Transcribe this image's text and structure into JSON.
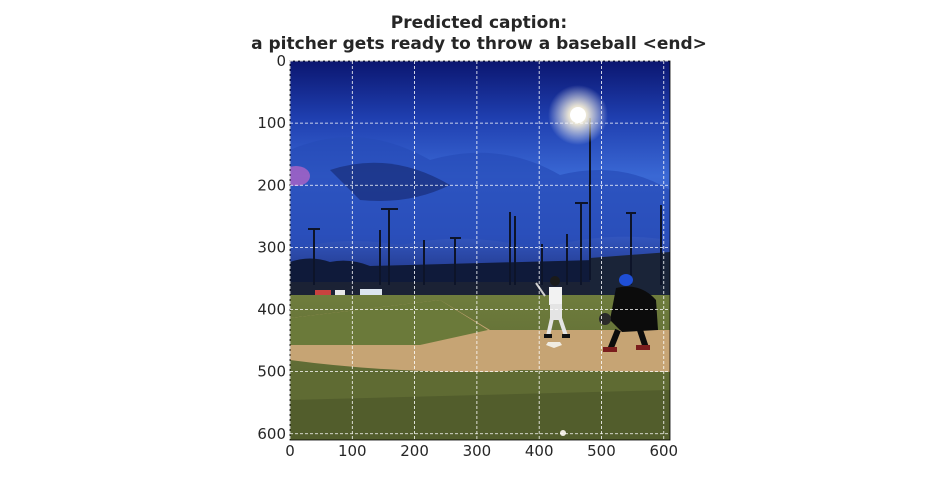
{
  "title_line1": "Predicted caption:",
  "title_line2": "a pitcher gets ready to throw a baseball <end>",
  "chart_data": {
    "type": "image",
    "title": "Predicted caption:\na pitcher gets ready to throw a baseball <end>",
    "xlabel": "",
    "ylabel": "",
    "xlim": [
      0,
      610
    ],
    "ylim": [
      610,
      0
    ],
    "x_ticks": [
      0,
      100,
      200,
      300,
      400,
      500,
      600
    ],
    "y_ticks": [
      0,
      100,
      200,
      300,
      400,
      500,
      600
    ],
    "grid": true,
    "image_subject": "night baseball game: batter at home plate, catcher crouching, stadium light tower, dark blue cloudy sky"
  },
  "colors": {
    "sky_top": "#0d1a78",
    "sky_mid": "#2b52c4",
    "infield_dirt": "#c9a777",
    "grass": "#6d7a38",
    "grid_line": "#ffffff"
  }
}
